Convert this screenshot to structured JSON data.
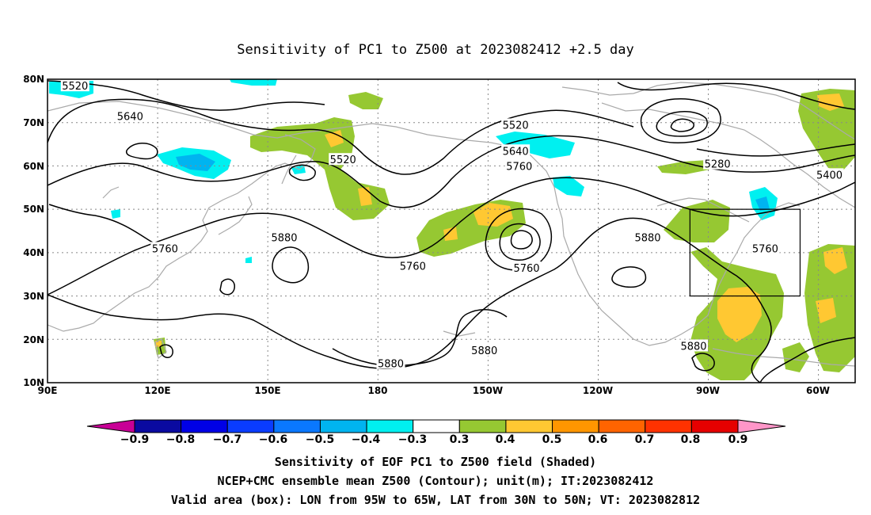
{
  "title": "Sensitivity of PC1 to Z500 at 2023082412 +2.5 day",
  "axes": {
    "lat_ticks": [
      "80N",
      "70N",
      "60N",
      "50N",
      "40N",
      "30N",
      "20N",
      "10N"
    ],
    "lon_ticks": [
      "90E",
      "120E",
      "150E",
      "180",
      "150W",
      "120W",
      "90W",
      "60W"
    ],
    "lon_range_deg_east": [
      90,
      310
    ],
    "lat_range_deg": [
      10,
      80
    ]
  },
  "contour_labels": [
    {
      "text": "5520",
      "lon": 97.5,
      "lat": 78.5
    },
    {
      "text": "5640",
      "lon": 112.5,
      "lat": 71.5
    },
    {
      "text": "5520",
      "lon": 170.5,
      "lat": 61.5
    },
    {
      "text": "5520",
      "lon": 217.5,
      "lat": 69.5
    },
    {
      "text": "5640",
      "lon": 217.5,
      "lat": 63.5
    },
    {
      "text": "5760",
      "lon": 218.5,
      "lat": 60.0
    },
    {
      "text": "5280",
      "lon": 272.5,
      "lat": 60.5
    },
    {
      "text": "5400",
      "lon": 303.0,
      "lat": 58.0
    },
    {
      "text": "5760",
      "lon": 122.0,
      "lat": 41.0
    },
    {
      "text": "5880",
      "lon": 154.5,
      "lat": 43.5
    },
    {
      "text": "5760",
      "lon": 189.5,
      "lat": 37.0
    },
    {
      "text": "5760",
      "lon": 220.5,
      "lat": 36.5
    },
    {
      "text": "5880",
      "lon": 253.5,
      "lat": 43.5
    },
    {
      "text": "5760",
      "lon": 285.5,
      "lat": 41.0
    },
    {
      "text": "5880",
      "lon": 266.0,
      "lat": 18.5
    },
    {
      "text": "5880",
      "lon": 209.0,
      "lat": 17.5
    },
    {
      "text": "5880",
      "lon": 183.5,
      "lat": 14.5
    }
  ],
  "valid_box": {
    "lon_w": 265,
    "lon_e": 295,
    "lat_s": 30,
    "lat_n": 50
  },
  "colorbar": {
    "labels": [
      "−0.9",
      "−0.8",
      "−0.7",
      "−0.6",
      "−0.5",
      "−0.4",
      "−0.3",
      "0.3",
      "0.4",
      "0.5",
      "0.6",
      "0.7",
      "0.8",
      "0.9"
    ],
    "colors": [
      "#0a0aa0",
      "#0000e6",
      "#0a3cff",
      "#0a78ff",
      "#00b4f0",
      "#00f0f0",
      "#ffffff",
      "#96c832",
      "#ffc832",
      "#ff9600",
      "#ff6400",
      "#ff3200",
      "#e60000"
    ],
    "low_extend_color": "#c80096",
    "high_extend_color": "#ff96c8"
  },
  "caption": {
    "line1": "Sensitivity of EOF PC1 to Z500 field (Shaded)",
    "line2": "NCEP+CMC ensemble mean Z500 (Contour); unit(m); IT:2023082412",
    "line3": "Valid area (box): LON from 95W to 65W, LAT from 30N to 50N; VT: 2023082812"
  }
}
